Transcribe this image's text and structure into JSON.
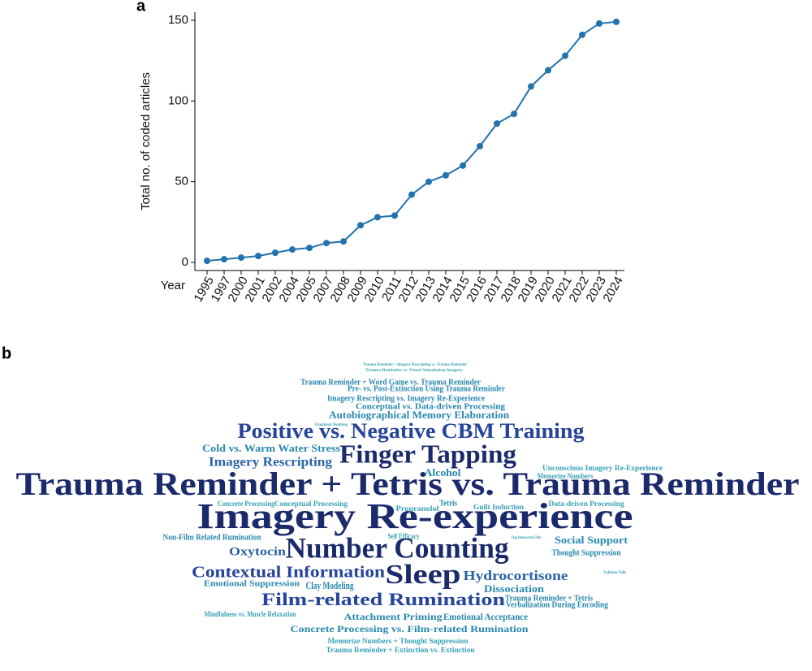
{
  "chart_data": [
    {
      "type": "line",
      "panel_label": "a",
      "ylabel": "Total no. of coded articles",
      "xlabel": "Year",
      "categories": [
        "1995",
        "1997",
        "2000",
        "2001",
        "2002",
        "2004",
        "2005",
        "2007",
        "2008",
        "2009",
        "2010",
        "2011",
        "2012",
        "2013",
        "2014",
        "2015",
        "2016",
        "2017",
        "2018",
        "2019",
        "2020",
        "2021",
        "2022",
        "2023",
        "2024"
      ],
      "values": [
        1,
        2,
        3,
        4,
        6,
        8,
        9,
        12,
        13,
        23,
        28,
        29,
        42,
        50,
        54,
        60,
        72,
        86,
        92,
        109,
        119,
        128,
        141,
        148,
        149
      ],
      "color": "#2272ad",
      "ylim": [
        -5,
        155
      ],
      "yticks": [
        0,
        50,
        100,
        150
      ]
    },
    {
      "type": "wordcloud",
      "panel_label": "b",
      "words": [
        "Trauma Reminder + Tetris vs. Trauma Reminder",
        "Imagery Re-experience",
        "Number Counting",
        "Finger Tapping",
        "Sleep",
        "Positive vs. Negative CBM Training",
        "Film-related Rumination",
        "Contextual Information",
        "Hydrocortisone",
        "Imagery Rescripting",
        "Autobiographical Memory Elaboration",
        "Cold vs. Warm Water Stress",
        "Oxytocin",
        "Social Support",
        "Clay Modeling",
        "Dissociation",
        "Alcohol",
        "Concrete Processing vs. Film-related Rumination",
        "Attachment Priming",
        "Emotional Acceptance",
        "Trauma Reminder + Word Game vs. Trauma Reminder",
        "Pre- vs. Post-Extinction Using Trauma Reminder",
        "Imagery Rescripting vs. Imagery Re-Experience",
        "Conceptual vs. Data-driven Processing",
        "Unconscious Imagery Re-Experience",
        "Memorize Numbers",
        "Tetris",
        "Concrete Processing",
        "Conceptual Processing",
        "Propranolol",
        "Guilt Induction",
        "Data-driven Processing",
        "Non-Film Related Rumination",
        "Self Efficacy",
        "Thought Suppression",
        "Emotional Suppression",
        "Trauma Reminder + Tetris",
        "Verbalization During Encoding",
        "Mindfulness vs. Muscle Relaxation",
        "Memorize Numbers + Thought Suppression",
        "Trauma Reminder + Extinction vs. Extinction",
        "Trauma Reminder + Imagery Rescripting vs. Trauma Reminder",
        "Trauma Reminder vs. Visual Stimulation Imagery",
        "Emotional Numbing",
        "Dog Interaction Film",
        "Validate Talk"
      ]
    }
  ]
}
